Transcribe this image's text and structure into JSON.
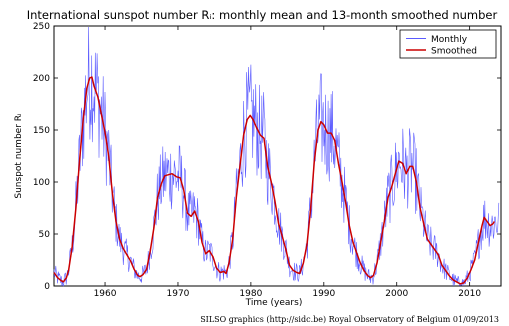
{
  "chart_data": {
    "type": "line",
    "title": "International sunspot number Rᵢ: monthly mean and 13-month smoothed number",
    "xlabel": "Time (years)",
    "ylabel": "Sunspot number Rᵢ",
    "xlim": [
      1953.0,
      2014.3
    ],
    "ylim": [
      0,
      250
    ],
    "xticks": [
      1960,
      1970,
      1980,
      1990,
      2000,
      2010
    ],
    "yticks": [
      0,
      50,
      100,
      150,
      200,
      250
    ],
    "grid": false,
    "legend_position": "top-right",
    "credit": "SILSO graphics (http://sidc.be)  Royal Observatory of Belgium  01/09/2013",
    "series": [
      {
        "name": "Smoothed",
        "color": "#cc0000",
        "points": [
          [
            1953.0,
            13
          ],
          [
            1953.5,
            8
          ],
          [
            1954.0,
            5
          ],
          [
            1954.3,
            4
          ],
          [
            1954.7,
            8
          ],
          [
            1955.0,
            15
          ],
          [
            1955.5,
            38
          ],
          [
            1956.0,
            75
          ],
          [
            1956.5,
            120
          ],
          [
            1957.0,
            160
          ],
          [
            1957.5,
            190
          ],
          [
            1957.9,
            200
          ],
          [
            1958.2,
            201
          ],
          [
            1958.5,
            192
          ],
          [
            1959.0,
            182
          ],
          [
            1959.5,
            165
          ],
          [
            1960.0,
            148
          ],
          [
            1960.5,
            125
          ],
          [
            1961.0,
            90
          ],
          [
            1961.5,
            62
          ],
          [
            1962.0,
            45
          ],
          [
            1962.5,
            36
          ],
          [
            1963.0,
            30
          ],
          [
            1963.5,
            24
          ],
          [
            1964.0,
            16
          ],
          [
            1964.5,
            10
          ],
          [
            1964.8,
            9
          ],
          [
            1965.2,
            11
          ],
          [
            1965.7,
            16
          ],
          [
            1966.2,
            34
          ],
          [
            1966.7,
            56
          ],
          [
            1967.2,
            85
          ],
          [
            1967.7,
            98
          ],
          [
            1968.2,
            106
          ],
          [
            1968.7,
            107
          ],
          [
            1969.2,
            108
          ],
          [
            1969.8,
            105
          ],
          [
            1970.3,
            104
          ],
          [
            1970.8,
            92
          ],
          [
            1971.3,
            70
          ],
          [
            1971.8,
            67
          ],
          [
            1972.3,
            72
          ],
          [
            1972.8,
            62
          ],
          [
            1973.3,
            42
          ],
          [
            1973.8,
            31
          ],
          [
            1974.3,
            34
          ],
          [
            1974.8,
            28
          ],
          [
            1975.3,
            17
          ],
          [
            1975.8,
            13
          ],
          [
            1976.3,
            14
          ],
          [
            1976.6,
            12
          ],
          [
            1977.0,
            22
          ],
          [
            1977.5,
            45
          ],
          [
            1978.0,
            85
          ],
          [
            1978.5,
            115
          ],
          [
            1979.0,
            145
          ],
          [
            1979.5,
            160
          ],
          [
            1979.9,
            164
          ],
          [
            1980.3,
            160
          ],
          [
            1980.8,
            152
          ],
          [
            1981.3,
            145
          ],
          [
            1981.8,
            142
          ],
          [
            1982.3,
            115
          ],
          [
            1982.8,
            100
          ],
          [
            1983.3,
            82
          ],
          [
            1983.8,
            60
          ],
          [
            1984.3,
            48
          ],
          [
            1984.8,
            35
          ],
          [
            1985.3,
            20
          ],
          [
            1985.8,
            15
          ],
          [
            1986.3,
            13
          ],
          [
            1986.7,
            12
          ],
          [
            1987.2,
            22
          ],
          [
            1987.7,
            40
          ],
          [
            1988.2,
            75
          ],
          [
            1988.7,
            120
          ],
          [
            1989.2,
            150
          ],
          [
            1989.6,
            158
          ],
          [
            1990.0,
            155
          ],
          [
            1990.5,
            147
          ],
          [
            1991.0,
            147
          ],
          [
            1991.5,
            140
          ],
          [
            1992.0,
            118
          ],
          [
            1992.5,
            100
          ],
          [
            1993.0,
            80
          ],
          [
            1993.5,
            58
          ],
          [
            1994.0,
            42
          ],
          [
            1994.5,
            32
          ],
          [
            1995.0,
            22
          ],
          [
            1995.5,
            15
          ],
          [
            1996.0,
            10
          ],
          [
            1996.4,
            8
          ],
          [
            1996.8,
            10
          ],
          [
            1997.3,
            22
          ],
          [
            1997.8,
            42
          ],
          [
            1998.3,
            62
          ],
          [
            1998.8,
            85
          ],
          [
            1999.3,
            95
          ],
          [
            1999.8,
            108
          ],
          [
            2000.3,
            120
          ],
          [
            2000.8,
            118
          ],
          [
            2001.3,
            108
          ],
          [
            2001.8,
            115
          ],
          [
            2002.2,
            115
          ],
          [
            2002.7,
            100
          ],
          [
            2003.2,
            75
          ],
          [
            2003.7,
            60
          ],
          [
            2004.2,
            45
          ],
          [
            2004.7,
            40
          ],
          [
            2005.2,
            35
          ],
          [
            2005.7,
            30
          ],
          [
            2006.2,
            20
          ],
          [
            2006.7,
            15
          ],
          [
            2007.2,
            10
          ],
          [
            2007.7,
            6
          ],
          [
            2008.2,
            4
          ],
          [
            2008.7,
            2
          ],
          [
            2009.2,
            3
          ],
          [
            2009.7,
            8
          ],
          [
            2010.2,
            16
          ],
          [
            2010.7,
            25
          ],
          [
            2011.2,
            42
          ],
          [
            2011.7,
            58
          ],
          [
            2012.0,
            66
          ],
          [
            2012.4,
            62
          ],
          [
            2012.8,
            58
          ],
          [
            2013.2,
            60
          ],
          [
            2013.4,
            62
          ]
        ]
      }
    ]
  }
}
